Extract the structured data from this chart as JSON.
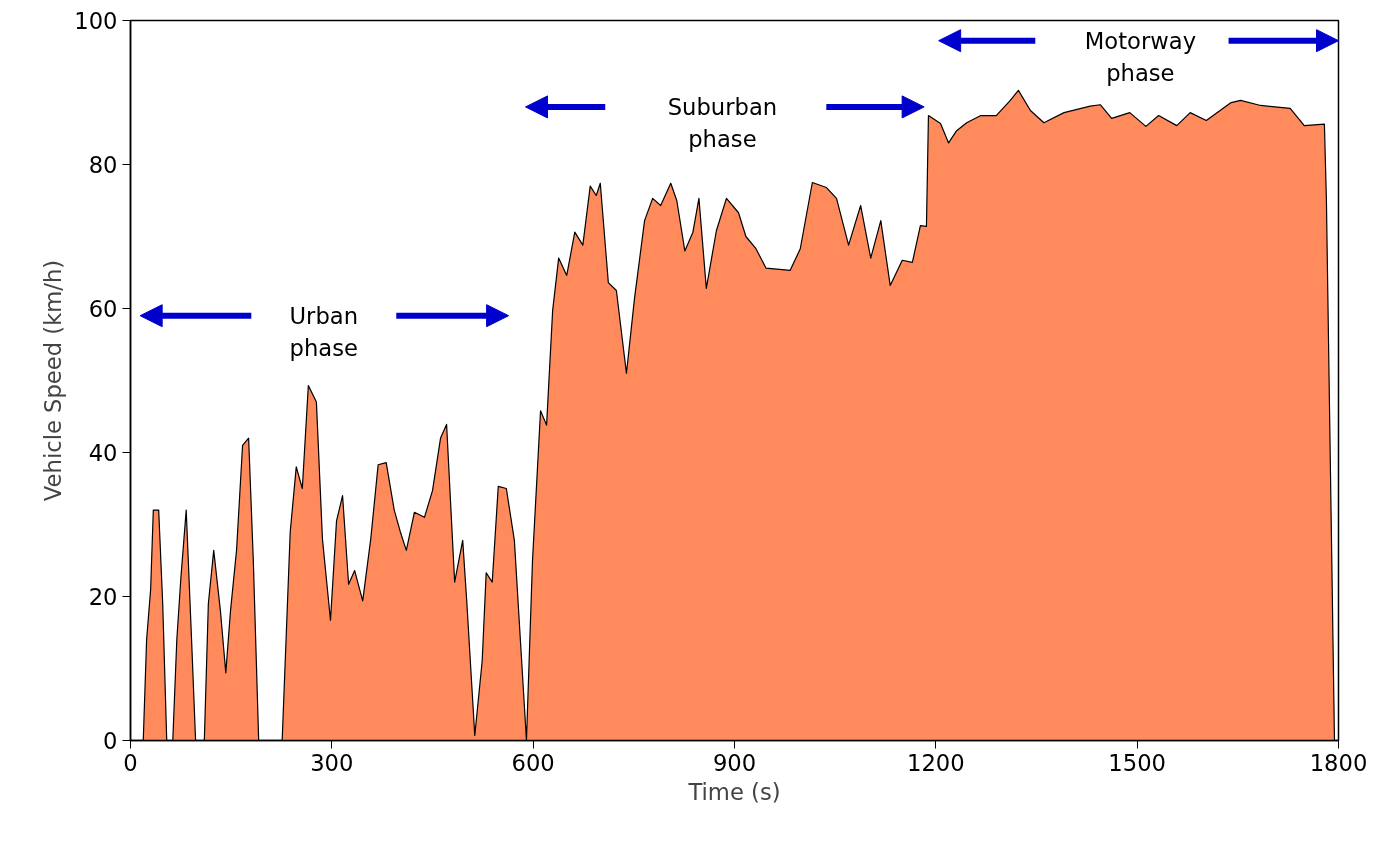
{
  "chart_data": {
    "type": "area",
    "xlabel": "Time (s)",
    "ylabel": "Vehicle Speed (km/h)",
    "xlim": [
      0,
      1800
    ],
    "xticks": [
      0,
      300,
      600,
      900,
      1200,
      1500,
      1800
    ],
    "ylim": [
      0,
      100
    ],
    "yticks": [
      0,
      20,
      40,
      60,
      80,
      100
    ],
    "series": [
      {
        "color": "#ff8a5c",
        "x": [
          19,
          24,
          30,
          34,
          42,
          48,
          54,
          63,
          69,
          75,
          83,
          91,
          97,
          110,
          116,
          124,
          134,
          142,
          149,
          158,
          167,
          176,
          183,
          191,
          226,
          238,
          247,
          256,
          265,
          277,
          286,
          298,
          307,
          316,
          325,
          334,
          346,
          358,
          369,
          381,
          393,
          402,
          411,
          423,
          438,
          450,
          462,
          471,
          483,
          495,
          501,
          513,
          524,
          530,
          539,
          548,
          560,
          572,
          581,
          590,
          599,
          611,
          620,
          629,
          638,
          650,
          662,
          674,
          685,
          694,
          700,
          712,
          724,
          739,
          751,
          766,
          778,
          790,
          805,
          814,
          826,
          838,
          847,
          858,
          873,
          888,
          906,
          917,
          932,
          947,
          983,
          998,
          1016,
          1037,
          1052,
          1070,
          1088,
          1103,
          1118,
          1132,
          1150,
          1165,
          1177,
          1186,
          1189,
          1207,
          1219,
          1231,
          1246,
          1267,
          1290,
          1311,
          1323,
          1341,
          1361,
          1391,
          1430,
          1445,
          1462,
          1489,
          1513,
          1532,
          1559,
          1579,
          1603,
          1640,
          1654,
          1684,
          1728,
          1749,
          1779,
          1782,
          1794
        ],
        "values": [
          0,
          14,
          21,
          32,
          32,
          19,
          0,
          0,
          14,
          22.5,
          32,
          14,
          0,
          0,
          19,
          26.4,
          18,
          9.4,
          18,
          26.4,
          41,
          42,
          25,
          0,
          0,
          29,
          38,
          35,
          49.3,
          47,
          28,
          16.7,
          30.5,
          34,
          21.7,
          23.6,
          19.4,
          28,
          38.3,
          38.6,
          32,
          29,
          26.4,
          31.7,
          31,
          34.7,
          42,
          43.9,
          22,
          27.8,
          19.4,
          0.7,
          11,
          23.3,
          22,
          35.3,
          35,
          27.8,
          13.9,
          0,
          25,
          45.8,
          43.8,
          59.7,
          67,
          64.6,
          70.6,
          68.8,
          77,
          75.7,
          77.4,
          63.6,
          62.5,
          51,
          61.4,
          72.2,
          75.3,
          74.3,
          77.4,
          75,
          68,
          70.6,
          75.3,
          62.8,
          70.8,
          75.3,
          73.3,
          70,
          68.3,
          65.6,
          65.3,
          68.3,
          77.5,
          76.8,
          75.3,
          68.8,
          74.3,
          67,
          72.2,
          63.2,
          66.7,
          66.4,
          71.5,
          71.4,
          86.8,
          85.7,
          83,
          84.7,
          85.8,
          86.8,
          86.8,
          88.9,
          90.3,
          87.5,
          85.8,
          87.2,
          88.1,
          88.3,
          86.4,
          87.2,
          85.3,
          86.8,
          85.4,
          87.2,
          86.1,
          88.6,
          88.9,
          88.2,
          87.8,
          85.4,
          85.6,
          75,
          0
        ]
      }
    ],
    "annotations": [
      "Urban\nphase",
      "Suburban\nphase",
      "Motorway\nphase"
    ],
    "grid": false
  }
}
